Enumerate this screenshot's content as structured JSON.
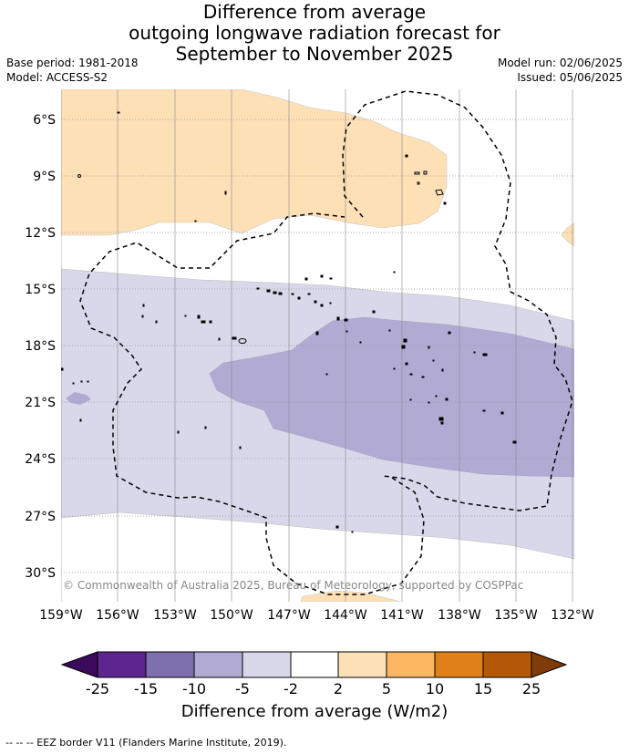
{
  "header": {
    "title_line1": "Difference from average",
    "title_line2": "outgoing longwave radiation forecast for",
    "title_line3": "September to November 2025",
    "base_period": "Base period: 1981-2018",
    "model": "Model: ACCESS-S2",
    "model_run": "Model run: 02/06/2025",
    "issued": "Issued: 05/06/2025"
  },
  "map": {
    "lat_labels": [
      "6°S",
      "9°S",
      "12°S",
      "15°S",
      "18°S",
      "21°S",
      "24°S",
      "27°S",
      "30°S"
    ],
    "lon_labels": [
      "159°W",
      "156°W",
      "153°W",
      "150°W",
      "147°W",
      "144°W",
      "141°W",
      "138°W",
      "135°W",
      "132°W"
    ],
    "copyright": "© Commonwealth of Australia 2025, Bureau of Meteorology, supported by COSPPac",
    "anomaly_colors": {
      "pos_2_5": "#fde0b6",
      "neg_2_5": "#d8d8ea",
      "neg_5_10": "#b1abd4"
    }
  },
  "colorbar": {
    "labels": [
      "-25",
      "-15",
      "-10",
      "-5",
      "-2",
      "2",
      "5",
      "10",
      "15",
      "25"
    ],
    "colors": [
      "#3b0a5c",
      "#5c2590",
      "#7e70ae",
      "#b1abd4",
      "#d8d8ea",
      "#ffffff",
      "#fde0b6",
      "#fdb762",
      "#e0801a",
      "#b35806",
      "#7f3b08"
    ],
    "title": "Difference from average (W/m2)"
  },
  "footer": {
    "eez_legend": "--  --  -- EEZ border V11 (Flanders Marine Institute, 2019)."
  }
}
